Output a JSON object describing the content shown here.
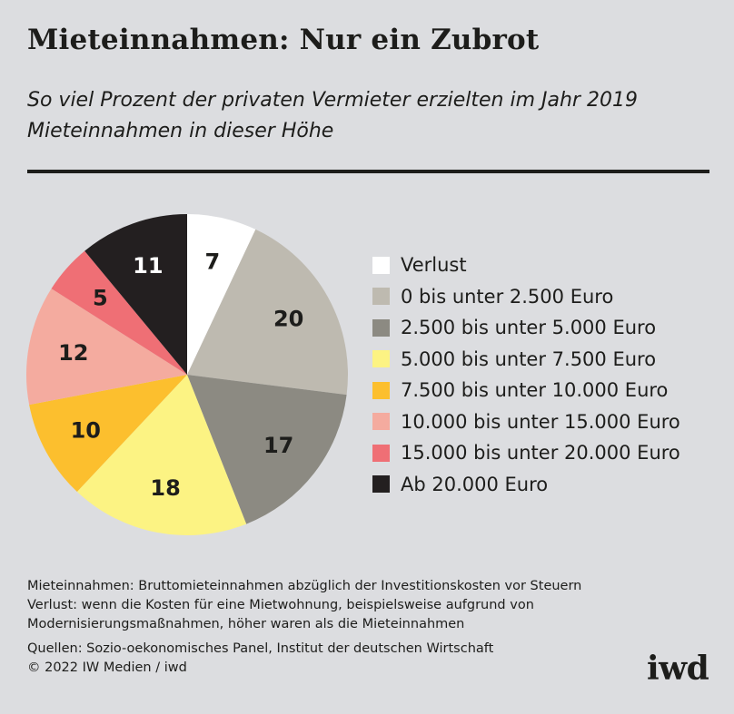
{
  "title": "Mieteinnahmen: Nur ein Zubrot",
  "subtitle": "So viel Prozent der privaten Vermieter erzielten im Jahr 2019 Mieteinnahmen in dieser Höhe",
  "chart_data": {
    "type": "pie",
    "unit": "Prozent",
    "slices": [
      {
        "label": "Verlust",
        "value": 7,
        "color": "#ffffff",
        "text_color": "#1d1d1b"
      },
      {
        "label": "0 bis unter 2.500 Euro",
        "value": 20,
        "color": "#bebab0",
        "text_color": "#1d1d1b"
      },
      {
        "label": "2.500 bis unter 5.000 Euro",
        "value": 17,
        "color": "#8c8a82",
        "text_color": "#1d1d1b"
      },
      {
        "label": "5.000 bis unter 7.500 Euro",
        "value": 18,
        "color": "#fcf383",
        "text_color": "#1d1d1b"
      },
      {
        "label": "7.500 bis unter 10.000 Euro",
        "value": 10,
        "color": "#fcbf2e",
        "text_color": "#1d1d1b"
      },
      {
        "label": "10.000 bis unter 15.000 Euro",
        "value": 12,
        "color": "#f4ab9f",
        "text_color": "#1d1d1b"
      },
      {
        "label": "15.000 bis unter 20.000 Euro",
        "value": 5,
        "color": "#ef6f75",
        "text_color": "#1d1d1b"
      },
      {
        "label": "Ab 20.000 Euro",
        "value": 11,
        "color": "#231f20",
        "text_color": "#ffffff"
      }
    ],
    "legend_position": "right"
  },
  "notes": {
    "line1": "Mieteinnahmen: Bruttomieteinnahmen abzüglich der Investitionskosten vor Steuern",
    "line2": "Verlust: wenn die Kosten für eine Mietwohnung, beispielsweise aufgrund von",
    "line3": "Modernisierungsmaßnahmen, höher waren als die Mieteinnahmen",
    "sources": "Quellen: Sozio-oekonomisches Panel, Institut der deutschen Wirtschaft",
    "copyright": "© 2022 IW Medien / iwd"
  },
  "logo_text": "iwd"
}
